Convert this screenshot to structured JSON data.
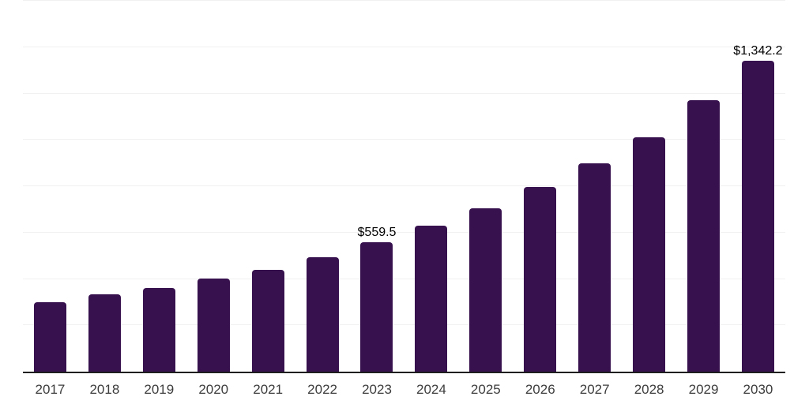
{
  "chart_data": {
    "type": "bar",
    "title": "",
    "xlabel": "",
    "ylabel": "",
    "categories": [
      "2017",
      "2018",
      "2019",
      "2020",
      "2021",
      "2022",
      "2023",
      "2024",
      "2025",
      "2026",
      "2027",
      "2028",
      "2029",
      "2030"
    ],
    "values": [
      301,
      332,
      362,
      403,
      440,
      495,
      559.5,
      631,
      706,
      797,
      899,
      1012,
      1171,
      1342.2
    ],
    "annotations": [
      {
        "category": "2023",
        "label": "$559.5"
      },
      {
        "category": "2030",
        "label": "$1,342.2"
      }
    ],
    "ylim": [
      0,
      1600
    ],
    "gridline_step": 200,
    "grid": true,
    "legend": "none",
    "y_axis_labels_visible": false,
    "colors": {
      "bar": "#36114d",
      "axis_line": "#1f1f1f",
      "gridline": "#f1f1f1",
      "tick_label": "#3d3d3d",
      "annotation_text": "#000000",
      "background": "#ffffff"
    }
  }
}
